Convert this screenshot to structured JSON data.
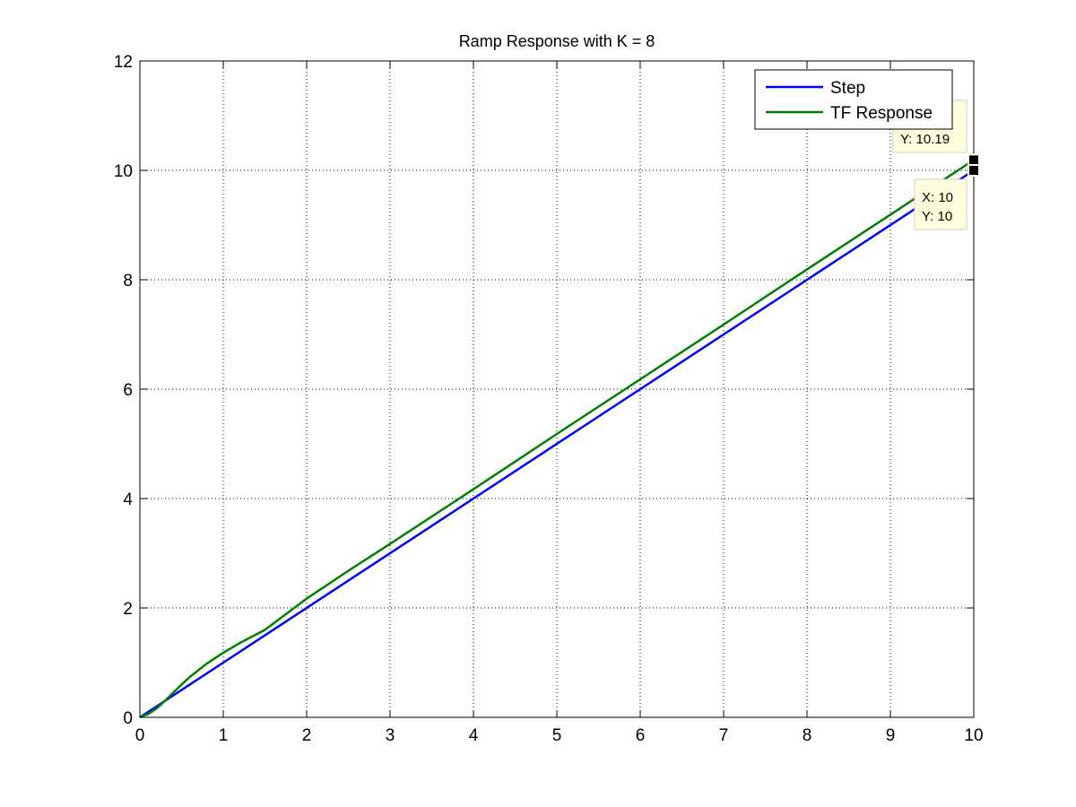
{
  "chart_data": {
    "type": "line",
    "title": "Ramp Response with K = 8",
    "xlabel": "",
    "ylabel": "",
    "xlim": [
      0,
      10
    ],
    "ylim": [
      0,
      12
    ],
    "xticks": [
      "0",
      "1",
      "2",
      "3",
      "4",
      "5",
      "6",
      "7",
      "8",
      "9",
      "10"
    ],
    "yticks": [
      "0",
      "2",
      "4",
      "6",
      "8",
      "10",
      "12"
    ],
    "grid": true,
    "legend_position": "top-right",
    "series": [
      {
        "name": "Step",
        "color": "#0000ff",
        "x": [
          0,
          10
        ],
        "y": [
          0,
          10
        ]
      },
      {
        "name": "TF Response",
        "color": "#007f00",
        "x": [
          0,
          0.1,
          0.2,
          0.3,
          0.4,
          0.5,
          0.6,
          0.8,
          1.0,
          1.2,
          1.5,
          2.0,
          2.5,
          3.0,
          4.0,
          5.0,
          6.0,
          7.0,
          8.0,
          9.0,
          10.0
        ],
        "y": [
          0,
          0.06,
          0.16,
          0.3,
          0.45,
          0.6,
          0.74,
          0.98,
          1.18,
          1.36,
          1.6,
          2.17,
          2.68,
          3.17,
          4.17,
          5.18,
          6.18,
          7.18,
          8.19,
          9.19,
          10.19
        ]
      }
    ],
    "annotations": [
      {
        "series": "TF Response",
        "x": 10,
        "y": 10.19,
        "lines": [
          "Y: 10.19"
        ]
      },
      {
        "series": "Step",
        "x": 10,
        "y": 10,
        "lines": [
          "X: 10",
          "Y: 10"
        ]
      }
    ]
  }
}
